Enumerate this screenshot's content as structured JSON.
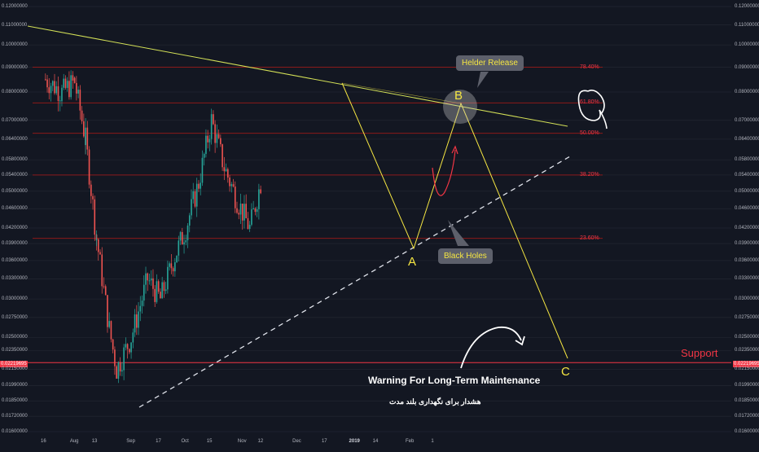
{
  "price_axis": {
    "labels": [
      "0.12000000",
      "0.11000000",
      "0.10000000",
      "0.09000000",
      "0.08000000",
      "0.07000000",
      "0.06400000",
      "0.05800000",
      "0.05400000",
      "0.05000000",
      "0.04600000",
      "0.04200000",
      "0.03900000",
      "0.03600000",
      "0.03300000",
      "0.03000000",
      "0.02750000",
      "0.02500000",
      "0.02350000",
      "0.02150000",
      "0.01990000",
      "0.01850000",
      "0.01720000",
      "0.01600000"
    ],
    "current_price": "0.02219695"
  },
  "time_axis": {
    "labels": [
      "16",
      "Aug",
      "13",
      "Sep",
      "17",
      "Oct",
      "15",
      "Nov",
      "12",
      "Dec",
      "17",
      "2019",
      "14",
      "Feb",
      "1"
    ],
    "bold": [
      "2019"
    ]
  },
  "fib_levels": [
    {
      "label": "78.40%",
      "price": 0.09
    },
    {
      "label": "61.80%",
      "price": 0.076
    },
    {
      "label": "50.00%",
      "price": 0.0658
    },
    {
      "label": "38.20%",
      "price": 0.054
    },
    {
      "label": "23.60%",
      "price": 0.04
    }
  ],
  "waves": {
    "a": "A",
    "b": "B",
    "c": "C"
  },
  "callouts": {
    "helder": "Helder Release",
    "black_holes": "Black Holes"
  },
  "support": {
    "label": "Support",
    "price": 0.02219695
  },
  "warning": {
    "english": "Warning For Long-Term Maintenance",
    "persian": "هشدار برای نگهداری بلند مدت"
  },
  "colors": {
    "background": "#131722",
    "up_candle": "#26a69a",
    "down_candle": "#ef5350",
    "trendline": "#d4e157",
    "wave_line": "#f5e642",
    "fib_line": "#8b1a1a",
    "support_line": "#f23645",
    "projection_arrow": "#f23645"
  },
  "chart_data": {
    "type": "candlestick",
    "symbol_note": "",
    "x_range": [
      "2018-07-16",
      "2019-03-01"
    ],
    "y_range": [
      0.016,
      0.12
    ],
    "y_scale": "log",
    "approx_closes": [
      {
        "date": "2018-07-16",
        "close": 0.085
      },
      {
        "date": "2018-07-25",
        "close": 0.08
      },
      {
        "date": "2018-08-01",
        "close": 0.084
      },
      {
        "date": "2018-08-07",
        "close": 0.064
      },
      {
        "date": "2018-08-13",
        "close": 0.04
      },
      {
        "date": "2018-08-20",
        "close": 0.026
      },
      {
        "date": "2018-08-24",
        "close": 0.0215
      },
      {
        "date": "2018-09-01",
        "close": 0.025
      },
      {
        "date": "2018-09-10",
        "close": 0.033
      },
      {
        "date": "2018-09-17",
        "close": 0.03
      },
      {
        "date": "2018-09-24",
        "close": 0.036
      },
      {
        "date": "2018-10-01",
        "close": 0.042
      },
      {
        "date": "2018-10-08",
        "close": 0.052
      },
      {
        "date": "2018-10-15",
        "close": 0.07
      },
      {
        "date": "2018-10-22",
        "close": 0.056
      },
      {
        "date": "2018-10-29",
        "close": 0.048
      },
      {
        "date": "2018-11-05",
        "close": 0.042
      },
      {
        "date": "2018-11-12",
        "close": 0.054
      }
    ]
  }
}
